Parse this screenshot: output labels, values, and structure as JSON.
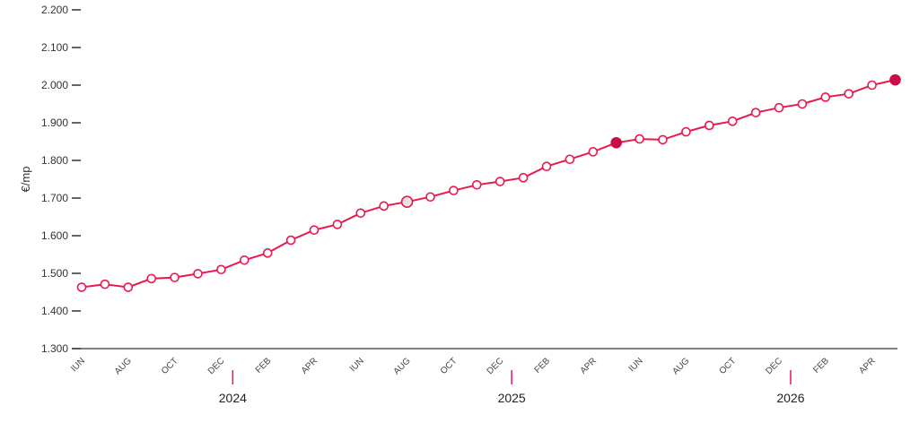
{
  "chart_data": {
    "type": "line",
    "ylabel": "€/mp",
    "ylim": [
      1300,
      2200
    ],
    "yticks": [
      1300,
      1400,
      1500,
      1600,
      1700,
      1800,
      1900,
      2000,
      2100,
      2200
    ],
    "ytick_labels": [
      "1.300",
      "1.400",
      "1.500",
      "1.600",
      "1.700",
      "1.800",
      "1.900",
      "2.000",
      "2.100",
      "2.200"
    ],
    "x_month_labels": [
      {
        "index": 0,
        "label": "IUN"
      },
      {
        "index": 2,
        "label": "AUG"
      },
      {
        "index": 4,
        "label": "OCT"
      },
      {
        "index": 6,
        "label": "DEC"
      },
      {
        "index": 8,
        "label": "FEB"
      },
      {
        "index": 10,
        "label": "APR"
      },
      {
        "index": 12,
        "label": "IUN"
      },
      {
        "index": 14,
        "label": "AUG"
      },
      {
        "index": 16,
        "label": "OCT"
      },
      {
        "index": 18,
        "label": "DEC"
      },
      {
        "index": 20,
        "label": "FEB"
      },
      {
        "index": 22,
        "label": "APR"
      },
      {
        "index": 24,
        "label": "IUN"
      },
      {
        "index": 26,
        "label": "AUG"
      },
      {
        "index": 28,
        "label": "OCT"
      },
      {
        "index": 30,
        "label": "DEC"
      },
      {
        "index": 32,
        "label": "FEB"
      },
      {
        "index": 34,
        "label": "APR"
      }
    ],
    "year_labels": [
      {
        "after_index": 6,
        "label": "2024"
      },
      {
        "after_index": 18,
        "label": "2025"
      },
      {
        "after_index": 30,
        "label": "2026"
      }
    ],
    "series": [
      {
        "values": [
          1463,
          1471,
          1463,
          1486,
          1489,
          1499,
          1510,
          1535,
          1554,
          1588,
          1615,
          1630,
          1660,
          1679,
          1690,
          1703,
          1720,
          1735,
          1744,
          1754,
          1784,
          1803,
          1823,
          1847,
          1857,
          1855,
          1876,
          1893,
          1904,
          1927,
          1940,
          1950,
          1968,
          1977,
          2000,
          2014
        ],
        "highlights": [
          {
            "index": 14,
            "style": "gray"
          },
          {
            "index": 23,
            "style": "filled"
          },
          {
            "index": 35,
            "style": "filled"
          }
        ]
      }
    ],
    "colors": {
      "line": "#e8194f",
      "filled": "#c90f45",
      "gray_fill": "#e4e4e4",
      "axis": "#333333"
    }
  }
}
